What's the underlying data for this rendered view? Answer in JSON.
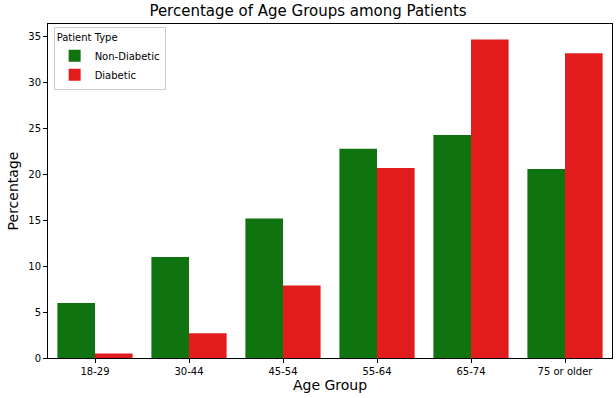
{
  "chart_data": {
    "type": "bar",
    "title": "Percentage of Age Groups among Patients",
    "x_label": "Age Group",
    "y_label": "Percentage",
    "categories": [
      "18-29",
      "30-44",
      "45-54",
      "55-64",
      "65-74",
      "75 or older"
    ],
    "series": [
      {
        "name": "Non-Diabetic",
        "color": "#0f730f",
        "values": [
          6.0,
          11.0,
          15.2,
          22.8,
          24.3,
          20.6
        ]
      },
      {
        "name": "Diabetic",
        "color": "#e21c1c",
        "values": [
          0.5,
          2.7,
          7.9,
          20.7,
          34.7,
          33.2
        ]
      }
    ],
    "ylim": [
      0,
      36.4
    ],
    "yticks": [
      0,
      5,
      10,
      15,
      20,
      25,
      30,
      35
    ],
    "grid": false,
    "legend": "upper left",
    "legend_title": "Patient Type"
  }
}
